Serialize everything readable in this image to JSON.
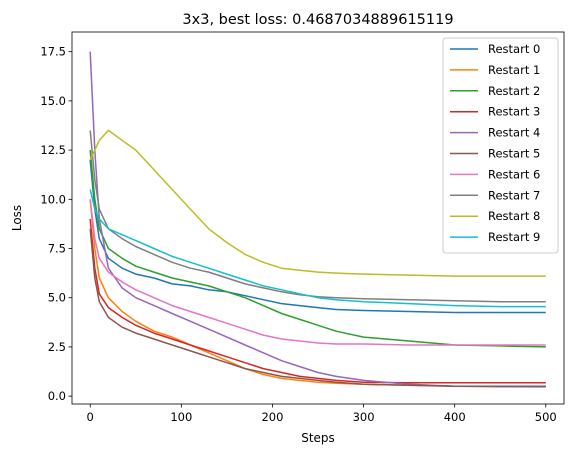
{
  "chart_data": {
    "type": "line",
    "title": "3x3, best loss: 0.4687034889615119",
    "xlabel": "Steps",
    "ylabel": "Loss",
    "xlim": [
      -20,
      520
    ],
    "ylim": [
      -0.4,
      18.5
    ],
    "xticks": [
      0,
      100,
      200,
      300,
      400,
      500
    ],
    "yticks": [
      0.0,
      2.5,
      5.0,
      7.5,
      10.0,
      12.5,
      15.0,
      17.5
    ],
    "ytick_labels": [
      "0.0",
      "2.5",
      "5.0",
      "7.5",
      "10.0",
      "12.5",
      "15.0",
      "17.5"
    ],
    "legend_position": "top-right",
    "grid": false,
    "series": [
      {
        "name": "Restart 0",
        "color": "#1f77b4",
        "x": [
          0,
          5,
          10,
          20,
          35,
          50,
          70,
          90,
          110,
          130,
          150,
          170,
          190,
          210,
          230,
          250,
          270,
          300,
          350,
          400,
          450,
          500
        ],
        "y": [
          12.0,
          9.5,
          8.0,
          7.0,
          6.5,
          6.2,
          6.0,
          5.7,
          5.6,
          5.4,
          5.3,
          5.1,
          4.9,
          4.7,
          4.6,
          4.5,
          4.4,
          4.35,
          4.3,
          4.25,
          4.25,
          4.25
        ]
      },
      {
        "name": "Restart 1",
        "color": "#ff7f0e",
        "x": [
          0,
          5,
          10,
          20,
          35,
          50,
          70,
          90,
          110,
          130,
          150,
          170,
          190,
          210,
          230,
          250,
          270,
          300,
          350,
          400,
          450,
          500
        ],
        "y": [
          10.0,
          7.5,
          6.0,
          5.0,
          4.3,
          3.8,
          3.3,
          3.0,
          2.6,
          2.2,
          1.8,
          1.4,
          1.1,
          0.9,
          0.8,
          0.7,
          0.65,
          0.6,
          0.55,
          0.5,
          0.5,
          0.5
        ]
      },
      {
        "name": "Restart 2",
        "color": "#2ca02c",
        "x": [
          0,
          5,
          10,
          20,
          35,
          50,
          70,
          90,
          110,
          130,
          150,
          170,
          190,
          210,
          230,
          250,
          270,
          300,
          350,
          400,
          450,
          500
        ],
        "y": [
          12.5,
          10.0,
          8.5,
          7.5,
          7.0,
          6.6,
          6.3,
          6.0,
          5.8,
          5.6,
          5.3,
          5.0,
          4.6,
          4.2,
          3.9,
          3.6,
          3.3,
          3.0,
          2.8,
          2.6,
          2.55,
          2.5
        ]
      },
      {
        "name": "Restart 3",
        "color": "#d62728",
        "x": [
          0,
          5,
          10,
          20,
          35,
          50,
          70,
          90,
          110,
          130,
          150,
          170,
          190,
          210,
          230,
          250,
          270,
          300,
          350,
          400,
          450,
          500
        ],
        "y": [
          9.0,
          6.5,
          5.2,
          4.5,
          4.0,
          3.6,
          3.2,
          2.9,
          2.6,
          2.3,
          2.0,
          1.7,
          1.4,
          1.2,
          1.0,
          0.9,
          0.8,
          0.7,
          0.68,
          0.68,
          0.68,
          0.68
        ]
      },
      {
        "name": "Restart 4",
        "color": "#9467bd",
        "x": [
          0,
          5,
          10,
          20,
          35,
          50,
          70,
          90,
          110,
          130,
          150,
          170,
          190,
          210,
          230,
          250,
          270,
          300,
          350,
          400,
          450,
          500
        ],
        "y": [
          17.5,
          12.5,
          9.0,
          6.5,
          5.5,
          5.0,
          4.6,
          4.2,
          3.8,
          3.4,
          3.0,
          2.6,
          2.2,
          1.8,
          1.5,
          1.2,
          1.0,
          0.8,
          0.6,
          0.5,
          0.48,
          0.47
        ]
      },
      {
        "name": "Restart 5",
        "color": "#8c564b",
        "x": [
          0,
          5,
          10,
          20,
          35,
          50,
          70,
          90,
          110,
          130,
          150,
          170,
          190,
          210,
          230,
          250,
          270,
          300,
          350,
          400,
          450,
          500
        ],
        "y": [
          8.5,
          6.0,
          4.8,
          4.0,
          3.5,
          3.2,
          2.9,
          2.6,
          2.3,
          2.0,
          1.7,
          1.4,
          1.2,
          1.0,
          0.9,
          0.8,
          0.7,
          0.6,
          0.55,
          0.5,
          0.5,
          0.5
        ]
      },
      {
        "name": "Restart 6",
        "color": "#e377c2",
        "x": [
          0,
          5,
          10,
          20,
          35,
          50,
          70,
          90,
          110,
          130,
          150,
          170,
          190,
          210,
          230,
          250,
          270,
          300,
          350,
          400,
          450,
          500
        ],
        "y": [
          10.0,
          8.0,
          7.0,
          6.3,
          5.8,
          5.4,
          5.0,
          4.6,
          4.3,
          4.0,
          3.7,
          3.4,
          3.1,
          2.9,
          2.8,
          2.7,
          2.65,
          2.65,
          2.6,
          2.6,
          2.6,
          2.6
        ]
      },
      {
        "name": "Restart 7",
        "color": "#7f7f7f",
        "x": [
          0,
          5,
          10,
          20,
          35,
          50,
          70,
          90,
          110,
          130,
          150,
          170,
          190,
          210,
          230,
          250,
          270,
          300,
          350,
          400,
          450,
          500
        ],
        "y": [
          13.5,
          11.0,
          9.5,
          8.5,
          8.0,
          7.6,
          7.2,
          6.8,
          6.5,
          6.3,
          6.0,
          5.7,
          5.5,
          5.3,
          5.15,
          5.05,
          5.0,
          4.95,
          4.9,
          4.85,
          4.8,
          4.8
        ]
      },
      {
        "name": "Restart 8",
        "color": "#bcbd22",
        "x": [
          0,
          5,
          10,
          20,
          35,
          50,
          70,
          90,
          110,
          130,
          150,
          170,
          190,
          210,
          230,
          250,
          270,
          300,
          350,
          400,
          450,
          500
        ],
        "y": [
          12.0,
          12.5,
          13.0,
          13.5,
          13.0,
          12.5,
          11.5,
          10.5,
          9.5,
          8.5,
          7.8,
          7.2,
          6.8,
          6.5,
          6.4,
          6.3,
          6.25,
          6.2,
          6.15,
          6.1,
          6.1,
          6.1
        ]
      },
      {
        "name": "Restart 9",
        "color": "#17becf",
        "x": [
          0,
          5,
          10,
          20,
          35,
          50,
          70,
          90,
          110,
          130,
          150,
          170,
          190,
          210,
          230,
          250,
          270,
          300,
          350,
          400,
          450,
          500
        ],
        "y": [
          10.5,
          9.5,
          9.0,
          8.5,
          8.2,
          7.9,
          7.5,
          7.1,
          6.8,
          6.5,
          6.2,
          5.9,
          5.6,
          5.4,
          5.2,
          5.0,
          4.9,
          4.8,
          4.7,
          4.6,
          4.55,
          4.55
        ]
      }
    ]
  }
}
